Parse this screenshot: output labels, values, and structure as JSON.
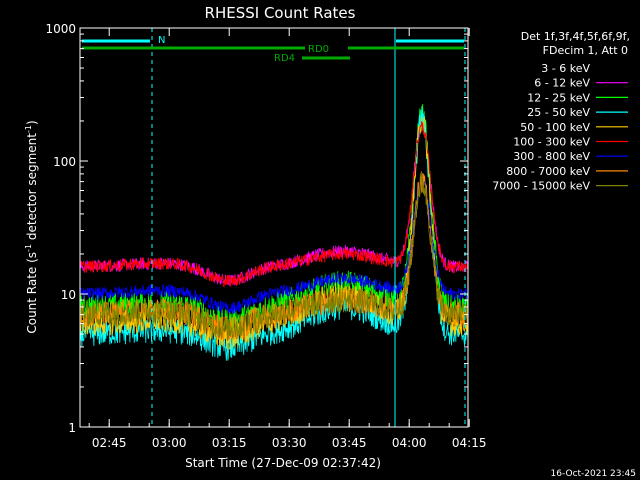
{
  "chart_data": {
    "type": "line",
    "title": "RHESSI Count Rates",
    "xlabel": "Start Time (27-Dec-09 02:37:42)",
    "ylabel_main": "Count Rate (s",
    "ylabel_sup1": "-1",
    "ylabel_mid": " detector segment",
    "ylabel_sup2": "-1",
    "ylabel_end": ")",
    "yscale": "log",
    "ylim": [
      1,
      1000
    ],
    "xlim_minutes": [
      0,
      97
    ],
    "x_ticks": [
      {
        "label": "02:45",
        "minute": 7.3
      },
      {
        "label": "03:00",
        "minute": 22.3
      },
      {
        "label": "03:15",
        "minute": 37.3
      },
      {
        "label": "03:30",
        "minute": 52.3
      },
      {
        "label": "03:45",
        "minute": 67.3
      },
      {
        "label": "04:00",
        "minute": 82.3
      },
      {
        "label": "04:15",
        "minute": 97.3
      }
    ],
    "y_ticks": [
      {
        "label": "1",
        "value": 1
      },
      {
        "label": "10",
        "value": 10
      },
      {
        "label": "100",
        "value": 100
      },
      {
        "label": "1000",
        "value": 1000
      }
    ],
    "legend_header": [
      "Det 1f,3f,4f,5f,6f,9f,",
      "FDecim 1, Att 0"
    ],
    "flag_labels": {
      "n": "N",
      "rd0": "RD0",
      "rd4": "RD4"
    },
    "timestamp": "16-Oct-2021 23:45",
    "series": [
      {
        "name": "3 - 6 keV",
        "color": "#000000",
        "base": 18,
        "bump": 17,
        "peak": 145
      },
      {
        "name": "6 - 12 keV",
        "color": "#ff00ff",
        "base": 16,
        "bump": 21,
        "peak": 190
      },
      {
        "name": "12 - 25 keV",
        "color": "#00ff00",
        "base": 8,
        "bump": 12,
        "peak": 215
      },
      {
        "name": "25 - 50 keV",
        "color": "#00ffff",
        "base": 5,
        "bump": 8,
        "peak": 205
      },
      {
        "name": "50 - 100 keV",
        "color": "#ffcc00",
        "base": 6,
        "bump": 10,
        "peak": 200
      },
      {
        "name": "100 - 300 keV",
        "color": "#ff0000",
        "base": 16,
        "bump": 20,
        "peak": 180
      },
      {
        "name": "300 - 800 keV",
        "color": "#0000ff",
        "base": 10,
        "bump": 13,
        "peak": 75
      },
      {
        "name": "800 - 7000 keV",
        "color": "#ff8800",
        "base": 7,
        "bump": 9,
        "peak": 70
      },
      {
        "name": "7000 - 15000 keV",
        "color": "#808000",
        "base": 7,
        "bump": 9,
        "peak": 68
      }
    ]
  }
}
